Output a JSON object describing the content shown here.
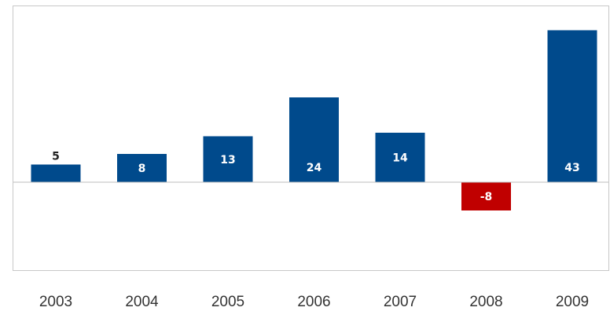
{
  "chart_data": {
    "type": "bar",
    "categories": [
      "2003",
      "2004",
      "2005",
      "2006",
      "2007",
      "2008",
      "2009"
    ],
    "values": [
      5,
      8,
      13,
      24,
      14,
      -8,
      43
    ],
    "data_labels": [
      "5",
      "8",
      "13",
      "24",
      "14",
      "-8",
      "43"
    ],
    "title": "",
    "xlabel": "",
    "ylabel": "",
    "ylim": [
      -25,
      50
    ],
    "grid": false,
    "legend": "none",
    "colors": {
      "positive": "#004a8c",
      "negative": "#c00000",
      "label_inside": "#ffffff",
      "label_outside": "#222222",
      "frame": "#c8c8c8",
      "baseline": "#bdbdbd"
    }
  }
}
